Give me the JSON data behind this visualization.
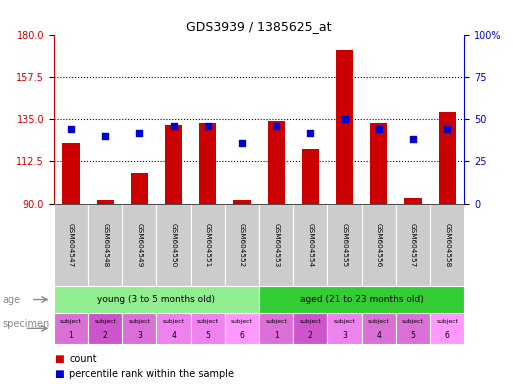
{
  "title": "GDS3939 / 1385625_at",
  "gsm_labels": [
    "GSM604547",
    "GSM604548",
    "GSM604549",
    "GSM604550",
    "GSM604551",
    "GSM604552",
    "GSM604553",
    "GSM604554",
    "GSM604555",
    "GSM604556",
    "GSM604557",
    "GSM604558"
  ],
  "bar_values": [
    122,
    92,
    106,
    132,
    133,
    92,
    134,
    119,
    172,
    133,
    93,
    139
  ],
  "dot_values": [
    44,
    40,
    42,
    46,
    46,
    36,
    46,
    42,
    50,
    44,
    38,
    44
  ],
  "ylim_left": [
    90,
    180
  ],
  "ylim_right": [
    0,
    100
  ],
  "yticks_left": [
    90,
    112.5,
    135,
    157.5,
    180
  ],
  "yticks_right": [
    0,
    25,
    50,
    75,
    100
  ],
  "bar_color": "#cc0000",
  "dot_color": "#0000cc",
  "dotted_line_values": [
    112.5,
    135,
    157.5
  ],
  "age_groups": [
    {
      "label": "young (3 to 5 months old)",
      "color": "#90ee90",
      "start": 0,
      "end": 6
    },
    {
      "label": "aged (21 to 23 months old)",
      "color": "#32cd32",
      "start": 6,
      "end": 12
    }
  ],
  "specimen_colors": [
    "#da70d6",
    "#cc55cc",
    "#da70d6",
    "#ee82ee",
    "#ee82ee",
    "#ff99ff",
    "#da70d6",
    "#cc55cc",
    "#ee82ee",
    "#da70d6",
    "#da70d6",
    "#ff99ff"
  ],
  "specimen_numbers": [
    "1",
    "2",
    "3",
    "4",
    "5",
    "6",
    "1",
    "2",
    "3",
    "4",
    "5",
    "6"
  ],
  "xlabel_age": "age",
  "xlabel_specimen": "specimen",
  "legend_count": "count",
  "legend_percentile": "percentile rank within the sample",
  "tick_label_color_left": "#cc0000",
  "tick_label_color_right": "#0000cc"
}
